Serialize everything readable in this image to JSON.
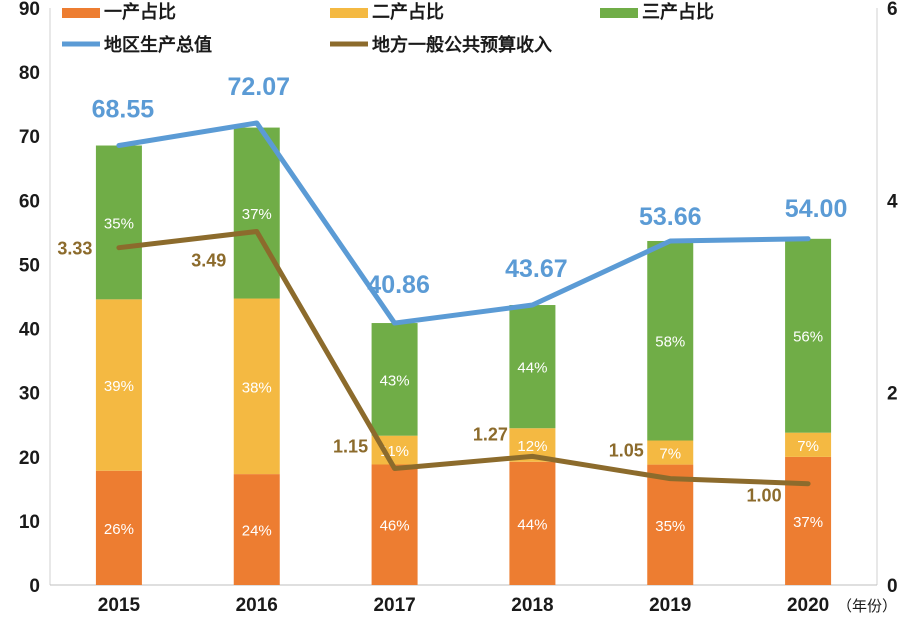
{
  "chart_data": {
    "type": "bar",
    "categories": [
      "2015",
      "2016",
      "2017",
      "2018",
      "2019",
      "2020"
    ],
    "x_unit": "（年份）",
    "y_left_range": [
      0,
      90
    ],
    "y_left_ticks": [
      "0",
      "10",
      "20",
      "30",
      "40",
      "50",
      "60",
      "70",
      "80",
      "90"
    ],
    "y_right_ticks": [
      "0",
      "2",
      "4",
      "6"
    ],
    "bar_totals": [
      68.55,
      72.07,
      40.86,
      43.67,
      53.66,
      54.0
    ],
    "stack_series": [
      {
        "name": "一产占比",
        "color": "#ed7d31",
        "values": [
          26,
          24,
          46,
          44,
          35,
          37
        ],
        "labels": [
          "26%",
          "24%",
          "46%",
          "44%",
          "35%",
          "37%"
        ]
      },
      {
        "name": "二产占比",
        "color": "#f4b942",
        "values": [
          39,
          38,
          11,
          12,
          7,
          7
        ],
        "labels": [
          "39%",
          "38%",
          "11%",
          "12%",
          "7%",
          "7%"
        ]
      },
      {
        "name": "三产占比",
        "color": "#70ad47",
        "values": [
          35,
          37,
          43,
          44,
          58,
          56
        ],
        "labels": [
          "35%",
          "37%",
          "43%",
          "44%",
          "58%",
          "56%"
        ]
      }
    ],
    "lines": [
      {
        "name": "地区生产总值",
        "color": "#5b9bd5",
        "values": [
          68.55,
          72.07,
          40.86,
          43.67,
          53.66,
          54.0
        ],
        "labels": [
          "68.55",
          "72.07",
          "40.86",
          "43.67",
          "53.66",
          "54.00"
        ]
      },
      {
        "name": "地方一般公共预算收入",
        "color": "#8c6b2c",
        "values": [
          3.33,
          3.49,
          1.15,
          1.27,
          1.05,
          1.0
        ],
        "labels": [
          "3.33",
          "3.49",
          "1.15",
          "1.27",
          "1.05",
          "1.00"
        ]
      }
    ],
    "legend": [
      "一产占比",
      "二产占比",
      "三产占比",
      "地区生产总值",
      "地方一般公共预算收入"
    ],
    "legend_position": "top",
    "grid": false
  }
}
